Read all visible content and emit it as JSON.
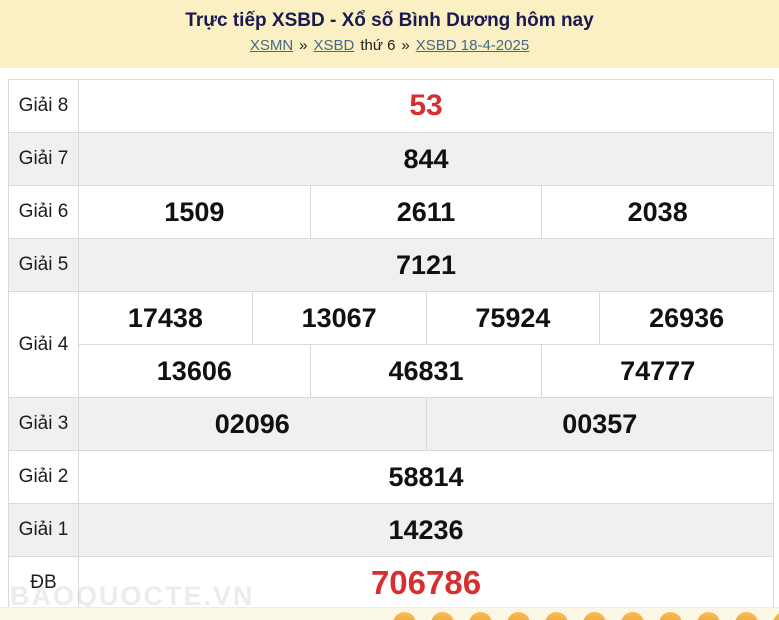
{
  "header": {
    "title": "Trực tiếp XSBD - Xổ số Bình Dương hôm nay",
    "breadcrumb": [
      {
        "text": "XSMN",
        "link": true
      },
      {
        "text": "»",
        "link": false
      },
      {
        "text": "XSBD",
        "link": true
      },
      {
        "text": "thứ 6",
        "link": false
      },
      {
        "text": "»",
        "link": false
      },
      {
        "text": "XSBD 18-4-2025",
        "link": true
      }
    ]
  },
  "results": {
    "rows": [
      {
        "id": "giai-8",
        "label": "Giải 8",
        "lines": [
          [
            "53"
          ]
        ],
        "shaded": false,
        "highlight": true,
        "size": "large"
      },
      {
        "id": "giai-7",
        "label": "Giải 7",
        "lines": [
          [
            "844"
          ]
        ],
        "shaded": true,
        "highlight": false
      },
      {
        "id": "giai-6",
        "label": "Giải 6",
        "lines": [
          [
            "1509",
            "2611",
            "2038"
          ]
        ],
        "shaded": false,
        "highlight": false
      },
      {
        "id": "giai-5",
        "label": "Giải 5",
        "lines": [
          [
            "7121"
          ]
        ],
        "shaded": true,
        "highlight": false
      },
      {
        "id": "giai-4",
        "label": "Giải 4",
        "lines": [
          [
            "17438",
            "13067",
            "75924",
            "26936"
          ],
          [
            "13606",
            "46831",
            "74777"
          ]
        ],
        "shaded": false,
        "highlight": false
      },
      {
        "id": "giai-3",
        "label": "Giải 3",
        "lines": [
          [
            "02096",
            "00357"
          ]
        ],
        "shaded": true,
        "highlight": false
      },
      {
        "id": "giai-2",
        "label": "Giải 2",
        "lines": [
          [
            "58814"
          ]
        ],
        "shaded": false,
        "highlight": false
      },
      {
        "id": "giai-1",
        "label": "Giải 1",
        "lines": [
          [
            "14236"
          ]
        ],
        "shaded": true,
        "highlight": false
      },
      {
        "id": "giai-db",
        "label": "ĐB",
        "lines": [
          [
            "706786"
          ]
        ],
        "shaded": false,
        "highlight": true,
        "size": "xlarge"
      }
    ]
  },
  "watermark": "BAOQUOCTE.VN",
  "footer": {
    "balls": 11
  },
  "colors": {
    "header_bg": "#FAF0C3",
    "title": "#1A1A52",
    "link": "#44688C",
    "highlight": "#D53030",
    "row_shade": "#F0F0F0",
    "border": "#D9D9D9",
    "footer_bg": "#FBF7E6",
    "ball": "#F2A93B"
  }
}
